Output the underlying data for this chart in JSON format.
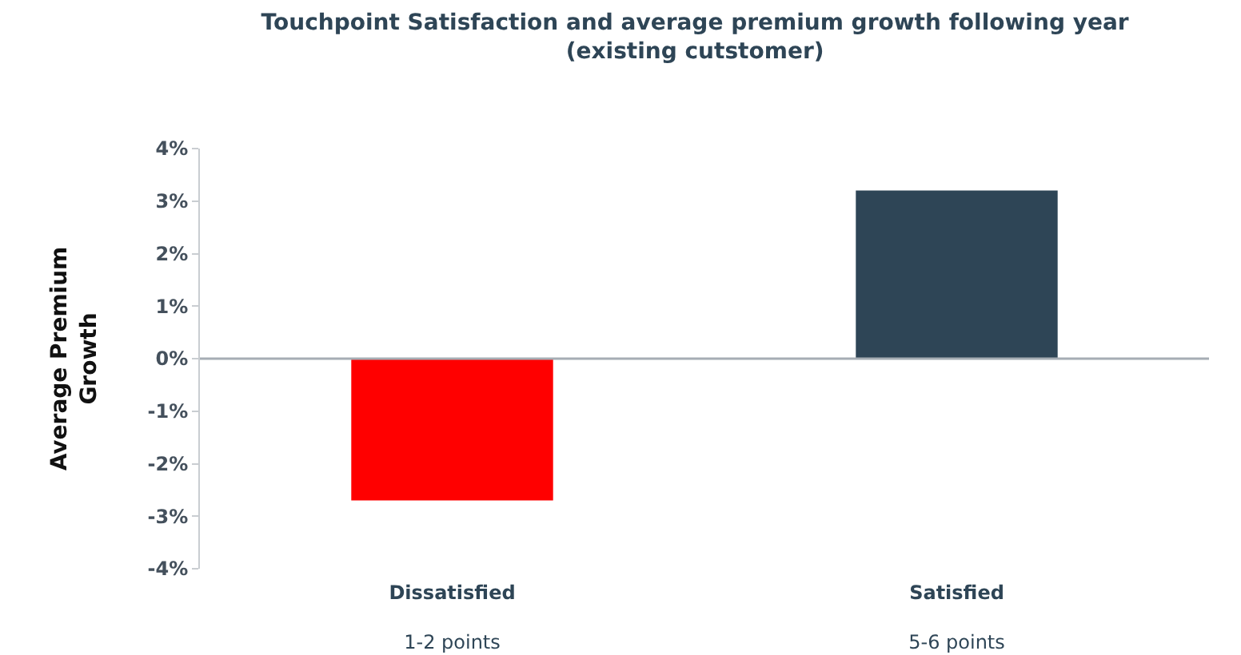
{
  "chart_data": {
    "type": "bar",
    "title": "Touchpoint Satisfaction and average premium growth following year\n(existing cutstomer)",
    "ylabel": "Average Premium\nGrowth",
    "categories": [
      "Dissatisfied\n1-2 points",
      "Satisfied\n5-6 points"
    ],
    "values": [
      -2.7,
      3.2
    ],
    "colors": [
      "#ff0000",
      "#2e4556"
    ],
    "ylim": [
      -4,
      4
    ],
    "yticks": [
      {
        "value": -4,
        "label": "-4%"
      },
      {
        "value": -3,
        "label": "-3%"
      },
      {
        "value": -2,
        "label": "-2%"
      },
      {
        "value": -1,
        "label": "-1%"
      },
      {
        "value": 0,
        "label": "0%"
      },
      {
        "value": 1,
        "label": "1%"
      },
      {
        "value": 2,
        "label": "2%"
      },
      {
        "value": 3,
        "label": "3%"
      },
      {
        "value": 4,
        "label": "4%"
      }
    ],
    "ref_lines": [
      {
        "axis": "y",
        "value": 0,
        "color": "#a6adb4"
      }
    ],
    "grid": false
  }
}
